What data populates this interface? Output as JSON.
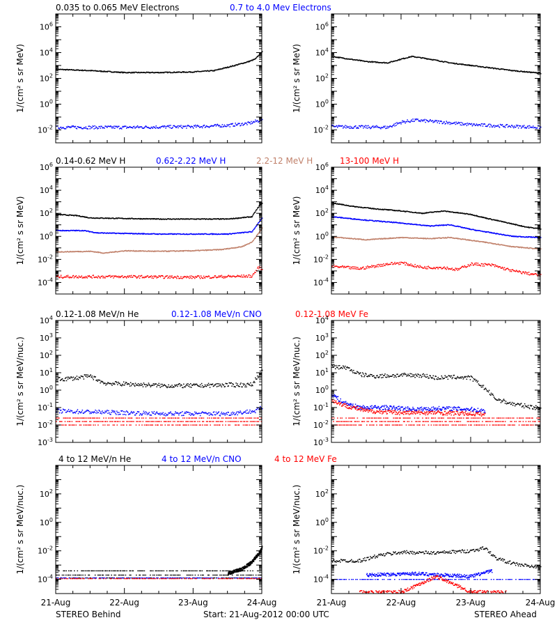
{
  "colors": {
    "black": "#000000",
    "blue": "#0000ff",
    "tan": "#c0806a",
    "red": "#ff0000",
    "axis": "#000000"
  },
  "footer": {
    "left": "STEREO Behind",
    "center": "Start: 21-Aug-2012 00:00 UTC",
    "right": "STEREO Ahead"
  },
  "x_ticks": [
    "21-Aug",
    "22-Aug",
    "23-Aug",
    "24-Aug"
  ],
  "chart_data": [
    {
      "type": "scatter",
      "row": 0,
      "ylabel": "1/(cm² s sr MeV)",
      "ylim_log10": [
        -3,
        7
      ],
      "yticks": [
        {
          "exp": -2,
          "label": "10-2"
        },
        {
          "exp": 0,
          "label": "100"
        },
        {
          "exp": 2,
          "label": "102"
        },
        {
          "exp": 4,
          "label": "104"
        },
        {
          "exp": 6,
          "label": "106"
        }
      ],
      "legend": [
        {
          "text": "0.035 to 0.065 MeV Electrons",
          "color": "#000000"
        },
        {
          "text": "0.7 to 4.0 Mev Electrons",
          "color": "#0000ff"
        }
      ],
      "behind": [
        {
          "color": "#000000",
          "style": "line",
          "pts": [
            [
              0,
              2.7
            ],
            [
              0.5,
              2.6
            ],
            [
              1.0,
              2.45
            ],
            [
              1.5,
              2.45
            ],
            [
              2.0,
              2.5
            ],
            [
              2.3,
              2.6
            ],
            [
              2.6,
              3.0
            ],
            [
              2.8,
              3.3
            ],
            [
              2.9,
              3.5
            ],
            [
              3.0,
              4.1
            ]
          ]
        },
        {
          "color": "#0000ff",
          "style": "dots",
          "pts": [
            [
              0,
              -1.8
            ],
            [
              1,
              -1.8
            ],
            [
              2,
              -1.75
            ],
            [
              2.5,
              -1.65
            ],
            [
              2.8,
              -1.5
            ],
            [
              3.0,
              -1.2
            ]
          ]
        }
      ],
      "ahead": [
        {
          "color": "#000000",
          "style": "line",
          "pts": [
            [
              0,
              3.7
            ],
            [
              0.5,
              3.3
            ],
            [
              0.8,
              3.2
            ],
            [
              1.0,
              3.5
            ],
            [
              1.15,
              3.7
            ],
            [
              1.4,
              3.5
            ],
            [
              1.7,
              3.2
            ],
            [
              2.0,
              3.0
            ],
            [
              2.3,
              2.8
            ],
            [
              2.6,
              2.6
            ],
            [
              3.0,
              2.4
            ]
          ]
        },
        {
          "color": "#0000ff",
          "style": "dots",
          "pts": [
            [
              0,
              -1.75
            ],
            [
              0.8,
              -1.8
            ],
            [
              1.0,
              -1.4
            ],
            [
              1.2,
              -1.25
            ],
            [
              1.6,
              -1.4
            ],
            [
              2.0,
              -1.6
            ],
            [
              3.0,
              -1.8
            ]
          ]
        }
      ]
    },
    {
      "type": "scatter",
      "row": 1,
      "ylabel": "1/(cm² s sr MeV)",
      "ylim_log10": [
        -5,
        6
      ],
      "yticks": [
        {
          "exp": -4,
          "label": "10-4"
        },
        {
          "exp": -2,
          "label": "10-2"
        },
        {
          "exp": 0,
          "label": "100"
        },
        {
          "exp": 2,
          "label": "102"
        },
        {
          "exp": 4,
          "label": "104"
        },
        {
          "exp": 6,
          "label": "106"
        }
      ],
      "legend": [
        {
          "text": "0.14-0.62 MeV H",
          "color": "#000000"
        },
        {
          "text": "0.62-2.22 MeV H",
          "color": "#0000ff"
        },
        {
          "text": "2.2-12 MeV H",
          "color": "#c0806a"
        },
        {
          "text": "13-100 MeV H",
          "color": "#ff0000"
        }
      ],
      "behind": [
        {
          "color": "#000000",
          "style": "line",
          "pts": [
            [
              0,
              1.9
            ],
            [
              0.3,
              1.8
            ],
            [
              0.5,
              1.6
            ],
            [
              1.0,
              1.55
            ],
            [
              1.5,
              1.5
            ],
            [
              2.0,
              1.5
            ],
            [
              2.5,
              1.5
            ],
            [
              2.85,
              1.7
            ],
            [
              2.95,
              2.6
            ],
            [
              3.0,
              2.9
            ]
          ]
        },
        {
          "color": "#0000ff",
          "style": "line",
          "pts": [
            [
              0,
              0.5
            ],
            [
              0.4,
              0.5
            ],
            [
              0.6,
              0.3
            ],
            [
              1.0,
              0.25
            ],
            [
              1.5,
              0.2
            ],
            [
              2.0,
              0.2
            ],
            [
              2.5,
              0.2
            ],
            [
              2.85,
              0.4
            ],
            [
              3.0,
              1.6
            ]
          ]
        },
        {
          "color": "#c0806a",
          "style": "line",
          "pts": [
            [
              0,
              -1.35
            ],
            [
              0.5,
              -1.3
            ],
            [
              0.7,
              -1.45
            ],
            [
              1.0,
              -1.25
            ],
            [
              1.5,
              -1.3
            ],
            [
              2.0,
              -1.25
            ],
            [
              2.4,
              -1.15
            ],
            [
              2.7,
              -0.9
            ],
            [
              2.85,
              -0.5
            ],
            [
              3.0,
              0.7
            ]
          ]
        },
        {
          "color": "#ff0000",
          "style": "dots",
          "pts": [
            [
              0,
              -3.5
            ],
            [
              1,
              -3.5
            ],
            [
              2,
              -3.55
            ],
            [
              2.85,
              -3.45
            ],
            [
              2.95,
              -2.7
            ],
            [
              3.0,
              -2.8
            ]
          ]
        }
      ],
      "ahead": [
        {
          "color": "#000000",
          "style": "line",
          "pts": [
            [
              0,
              2.9
            ],
            [
              0.3,
              2.6
            ],
            [
              0.6,
              2.4
            ],
            [
              1.0,
              2.2
            ],
            [
              1.3,
              2.0
            ],
            [
              1.6,
              2.2
            ],
            [
              2.0,
              1.9
            ],
            [
              2.2,
              1.6
            ],
            [
              2.5,
              1.2
            ],
            [
              2.8,
              0.8
            ],
            [
              3.0,
              0.65
            ]
          ]
        },
        {
          "color": "#0000ff",
          "style": "line",
          "pts": [
            [
              0,
              1.7
            ],
            [
              0.5,
              1.4
            ],
            [
              1.0,
              1.15
            ],
            [
              1.4,
              0.9
            ],
            [
              1.7,
              1.0
            ],
            [
              2.0,
              0.6
            ],
            [
              2.3,
              0.3
            ],
            [
              2.6,
              0.0
            ],
            [
              3.0,
              -0.1
            ]
          ]
        },
        {
          "color": "#c0806a",
          "style": "line",
          "pts": [
            [
              0,
              -0.05
            ],
            [
              0.5,
              -0.3
            ],
            [
              1.0,
              -0.1
            ],
            [
              1.4,
              -0.2
            ],
            [
              1.7,
              -0.1
            ],
            [
              2.0,
              -0.35
            ],
            [
              2.3,
              -0.6
            ],
            [
              2.6,
              -0.9
            ],
            [
              3.0,
              -1.1
            ]
          ]
        },
        {
          "color": "#ff0000",
          "style": "dots",
          "pts": [
            [
              0,
              -2.6
            ],
            [
              0.4,
              -2.8
            ],
            [
              0.8,
              -2.4
            ],
            [
              1.0,
              -2.3
            ],
            [
              1.3,
              -2.7
            ],
            [
              1.6,
              -2.7
            ],
            [
              1.8,
              -2.9
            ],
            [
              2.0,
              -2.4
            ],
            [
              2.3,
              -2.5
            ],
            [
              2.6,
              -3.0
            ],
            [
              3.0,
              -3.4
            ]
          ]
        }
      ]
    },
    {
      "type": "scatter",
      "row": 2,
      "ylabel": "1/(cm² s sr MeV/nuc.)",
      "ylim_log10": [
        -3,
        4
      ],
      "yticks": [
        {
          "exp": -3,
          "label": "10-3"
        },
        {
          "exp": -2,
          "label": "10-2"
        },
        {
          "exp": -1,
          "label": "10-1"
        },
        {
          "exp": 0,
          "label": "100"
        },
        {
          "exp": 1,
          "label": "101"
        },
        {
          "exp": 2,
          "label": "102"
        },
        {
          "exp": 3,
          "label": "103"
        },
        {
          "exp": 4,
          "label": "104"
        }
      ],
      "legend": [
        {
          "text": "0.12-1.08 MeV/n He",
          "color": "#000000"
        },
        {
          "text": "0.12-1.08 MeV/n CNO",
          "color": "#0000ff"
        },
        {
          "text": "0.12-1.08 MeV Fe",
          "color": "#ff0000"
        }
      ],
      "behind": [
        {
          "color": "#000000",
          "style": "dots",
          "pts": [
            [
              0,
              0.6
            ],
            [
              0.3,
              0.7
            ],
            [
              0.5,
              0.8
            ],
            [
              0.7,
              0.4
            ],
            [
              1.0,
              0.35
            ],
            [
              1.3,
              0.3
            ],
            [
              1.6,
              0.25
            ],
            [
              2.0,
              0.25
            ],
            [
              2.5,
              0.3
            ],
            [
              2.85,
              0.3
            ],
            [
              2.95,
              0.9
            ],
            [
              3.0,
              1.1
            ]
          ]
        },
        {
          "color": "#0000ff",
          "style": "dots",
          "pts": [
            [
              0,
              -1.2
            ],
            [
              0.5,
              -1.25
            ],
            [
              1.0,
              -1.3
            ],
            [
              1.5,
              -1.35
            ],
            [
              2.0,
              -1.35
            ],
            [
              2.5,
              -1.35
            ],
            [
              2.9,
              -1.2
            ],
            [
              3.0,
              -1.0
            ]
          ]
        },
        {
          "color": "#ff0000",
          "style": "bands",
          "levels": [
            -1.6,
            -1.8,
            -2.0
          ]
        }
      ],
      "ahead": [
        {
          "color": "#000000",
          "style": "dots",
          "pts": [
            [
              0,
              1.35
            ],
            [
              0.2,
              1.3
            ],
            [
              0.4,
              0.9
            ],
            [
              0.6,
              0.8
            ],
            [
              1.0,
              0.85
            ],
            [
              1.3,
              0.85
            ],
            [
              1.5,
              0.7
            ],
            [
              1.8,
              0.75
            ],
            [
              2.0,
              0.7
            ],
            [
              2.1,
              0.4
            ],
            [
              2.2,
              0.1
            ],
            [
              2.35,
              -0.5
            ],
            [
              2.6,
              -0.8
            ],
            [
              3.0,
              -1.05
            ]
          ]
        },
        {
          "color": "#0000ff",
          "style": "dots",
          "pts": [
            [
              0,
              -0.2
            ],
            [
              0.15,
              -0.7
            ],
            [
              0.4,
              -1.0
            ],
            [
              0.8,
              -1.0
            ],
            [
              1.2,
              -1.1
            ],
            [
              1.6,
              -1.05
            ],
            [
              2.0,
              -1.1
            ],
            [
              2.2,
              -1.2
            ]
          ]
        },
        {
          "color": "#ff0000",
          "style": "dots",
          "pts": [
            [
              0,
              -0.6
            ],
            [
              0.2,
              -0.9
            ],
            [
              0.5,
              -1.2
            ],
            [
              1.0,
              -1.3
            ],
            [
              1.5,
              -1.3
            ],
            [
              2.0,
              -1.35
            ],
            [
              2.2,
              -1.4
            ]
          ]
        },
        {
          "color": "#ff0000",
          "style": "bands",
          "levels": [
            -1.6,
            -1.8,
            -2.0
          ]
        }
      ]
    },
    {
      "type": "scatter",
      "row": 3,
      "ylabel": "1/(cm² s sr MeV/nuc.)",
      "ylim_log10": [
        -5,
        4
      ],
      "yticks": [
        {
          "exp": -4,
          "label": "10-4"
        },
        {
          "exp": -2,
          "label": "10-2"
        },
        {
          "exp": 0,
          "label": "100"
        },
        {
          "exp": 2,
          "label": "102"
        }
      ],
      "legend": [
        {
          "text": "4 to 12 MeV/n He",
          "color": "#000000"
        },
        {
          "text": "4 to 12 MeV/n CNO",
          "color": "#0000ff"
        },
        {
          "text": "4 to 12 MeV Fe",
          "color": "#ff0000"
        }
      ],
      "behind": [
        {
          "color": "#000000",
          "style": "bands",
          "levels": [
            -3.4,
            -3.7,
            -3.9
          ]
        },
        {
          "color": "#000000",
          "style": "dots",
          "pts": [
            [
              2.5,
              -3.6
            ],
            [
              2.7,
              -3.3
            ],
            [
              2.85,
              -2.8
            ],
            [
              2.95,
              -2.2
            ],
            [
              3.0,
              -1.8
            ]
          ]
        },
        {
          "color": "#0000ff",
          "style": "bands",
          "levels": [
            -3.9
          ]
        },
        {
          "color": "#ff0000",
          "style": "bands",
          "levels": [
            -3.95
          ]
        }
      ],
      "ahead": [
        {
          "color": "#000000",
          "style": "dots",
          "pts": [
            [
              0,
              -2.7
            ],
            [
              0.4,
              -2.7
            ],
            [
              0.7,
              -2.3
            ],
            [
              1.0,
              -2.1
            ],
            [
              1.5,
              -2.15
            ],
            [
              2.0,
              -2.0
            ],
            [
              2.2,
              -1.8
            ],
            [
              2.35,
              -2.5
            ],
            [
              2.6,
              -2.9
            ],
            [
              3.0,
              -3.2
            ]
          ]
        },
        {
          "color": "#0000ff",
          "style": "bands",
          "levels": [
            -4.0
          ]
        },
        {
          "color": "#0000ff",
          "style": "dots",
          "pts": [
            [
              0.5,
              -3.7
            ],
            [
              1.2,
              -3.6
            ],
            [
              2.0,
              -3.8
            ],
            [
              2.3,
              -3.4
            ]
          ]
        },
        {
          "color": "#ff0000",
          "style": "dots",
          "pts": [
            [
              0.4,
              -4.9
            ],
            [
              1.0,
              -4.9
            ],
            [
              1.5,
              -3.8
            ],
            [
              2.0,
              -4.9
            ],
            [
              2.5,
              -4.9
            ]
          ]
        }
      ]
    }
  ]
}
